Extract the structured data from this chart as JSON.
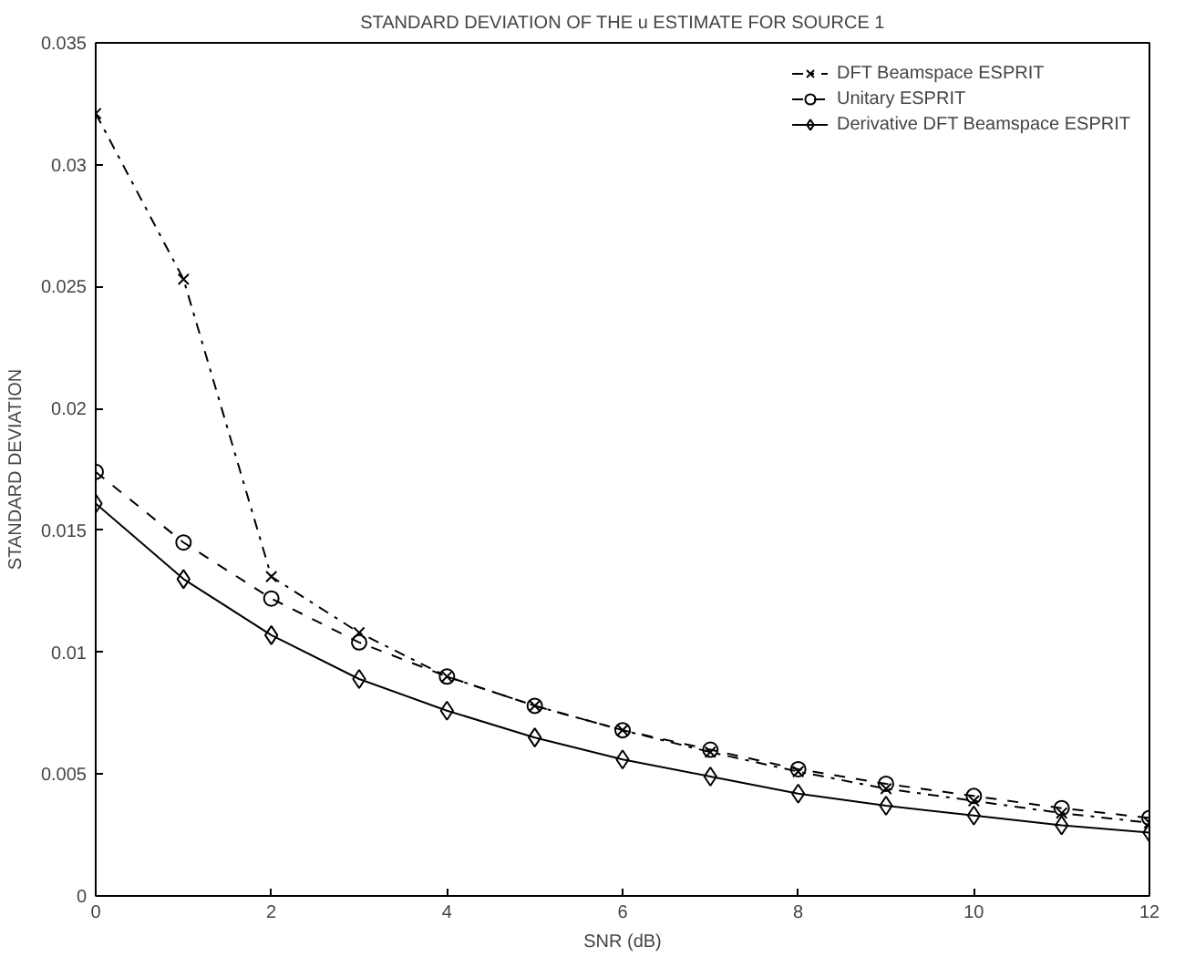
{
  "chart_data": {
    "type": "line",
    "title": "STANDARD DEVIATION OF THE u ESTIMATE FOR SOURCE 1",
    "xlabel": "SNR (dB)",
    "ylabel": "STANDARD DEVIATION",
    "x": [
      0,
      1,
      2,
      3,
      4,
      5,
      6,
      7,
      8,
      9,
      10,
      11,
      12
    ],
    "series": [
      {
        "name": "DFT Beamspace ESPRIT",
        "color": "#000000",
        "marker": "cross",
        "line_style": "dashdot",
        "values": [
          0.0321,
          0.0253,
          0.0131,
          0.0108,
          0.009,
          0.0078,
          0.0068,
          0.0059,
          0.0051,
          0.0044,
          0.0039,
          0.0034,
          0.003
        ]
      },
      {
        "name": "Unitary ESPRIT",
        "color": "#000000",
        "marker": "circle",
        "line_style": "dashed",
        "values": [
          0.0174,
          0.0145,
          0.0122,
          0.0104,
          0.009,
          0.0078,
          0.0068,
          0.006,
          0.0052,
          0.0046,
          0.0041,
          0.0036,
          0.0032
        ]
      },
      {
        "name": "Derivative DFT Beamspace ESPRIT",
        "color": "#000000",
        "marker": "diamond",
        "line_style": "solid",
        "values": [
          0.0161,
          0.013,
          0.0107,
          0.0089,
          0.0076,
          0.0065,
          0.0056,
          0.0049,
          0.0042,
          0.0037,
          0.0033,
          0.0029,
          0.0026
        ]
      }
    ],
    "xlim": [
      0,
      12
    ],
    "xticks": [
      0,
      2,
      4,
      6,
      8,
      10,
      12
    ],
    "ylim": [
      0,
      0.035
    ],
    "yticks": [
      0,
      0.005,
      0.01,
      0.015,
      0.02,
      0.025,
      0.03,
      0.035
    ],
    "grid": false,
    "legend": "top right"
  }
}
